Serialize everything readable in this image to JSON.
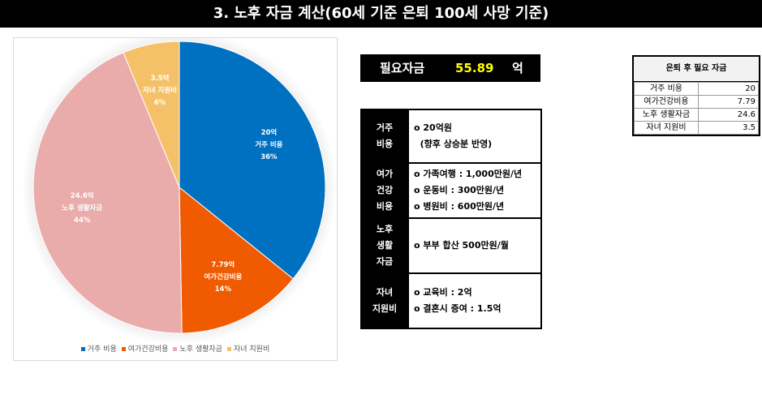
{
  "page_title": "3. 노후 자금 계산(60세 기준 은퇴 100세 사망 기준)",
  "need": {
    "label": "필요자금",
    "value": "55.89",
    "unit": "억"
  },
  "summary": {
    "title": "은퇴 후 필요 자금",
    "rows": [
      {
        "label": "거주 비용",
        "value": "20"
      },
      {
        "label": "여가건강비용",
        "value": "7.79"
      },
      {
        "label": "노후 생활자금",
        "value": "24.6"
      },
      {
        "label": "자녀 지원비",
        "value": "3.5"
      }
    ]
  },
  "info": {
    "rows": [
      {
        "head": "거주\n비용",
        "lines": [
          "o 20억원",
          "  (향후 상승분 반영)"
        ]
      },
      {
        "head": "여가\n건강\n비용",
        "lines": [
          "o 가족여행 : 1,000만원/년",
          "o 운동비 : 300만원/년",
          "o 병원비 : 600만원/년"
        ]
      },
      {
        "head": "노후\n생활\n자금",
        "lines": [
          "o 부부 합산 500만원/월"
        ]
      },
      {
        "head": "자녀\n지원비",
        "lines": [
          "o 교육비 : 2억",
          "o 결혼시 증여 : 1.5억"
        ]
      }
    ]
  },
  "chart_data": {
    "type": "pie",
    "slices": [
      {
        "name": "거주 비용",
        "value": 20,
        "value_label": "20억",
        "percent_label": "36%",
        "color": "#0070c0"
      },
      {
        "name": "여가건강비용",
        "value": 7.79,
        "value_label": "7.79억",
        "percent_label": "14%",
        "color": "#f05a00"
      },
      {
        "name": "노후 생활자금",
        "value": 24.6,
        "value_label": "24.6억",
        "percent_label": "44%",
        "color": "#eaabab"
      },
      {
        "name": "자녀 지원비",
        "value": 3.5,
        "value_label": "3.5억",
        "percent_label": "6%",
        "color": "#f4c168"
      }
    ],
    "legend_position": "bottom"
  }
}
